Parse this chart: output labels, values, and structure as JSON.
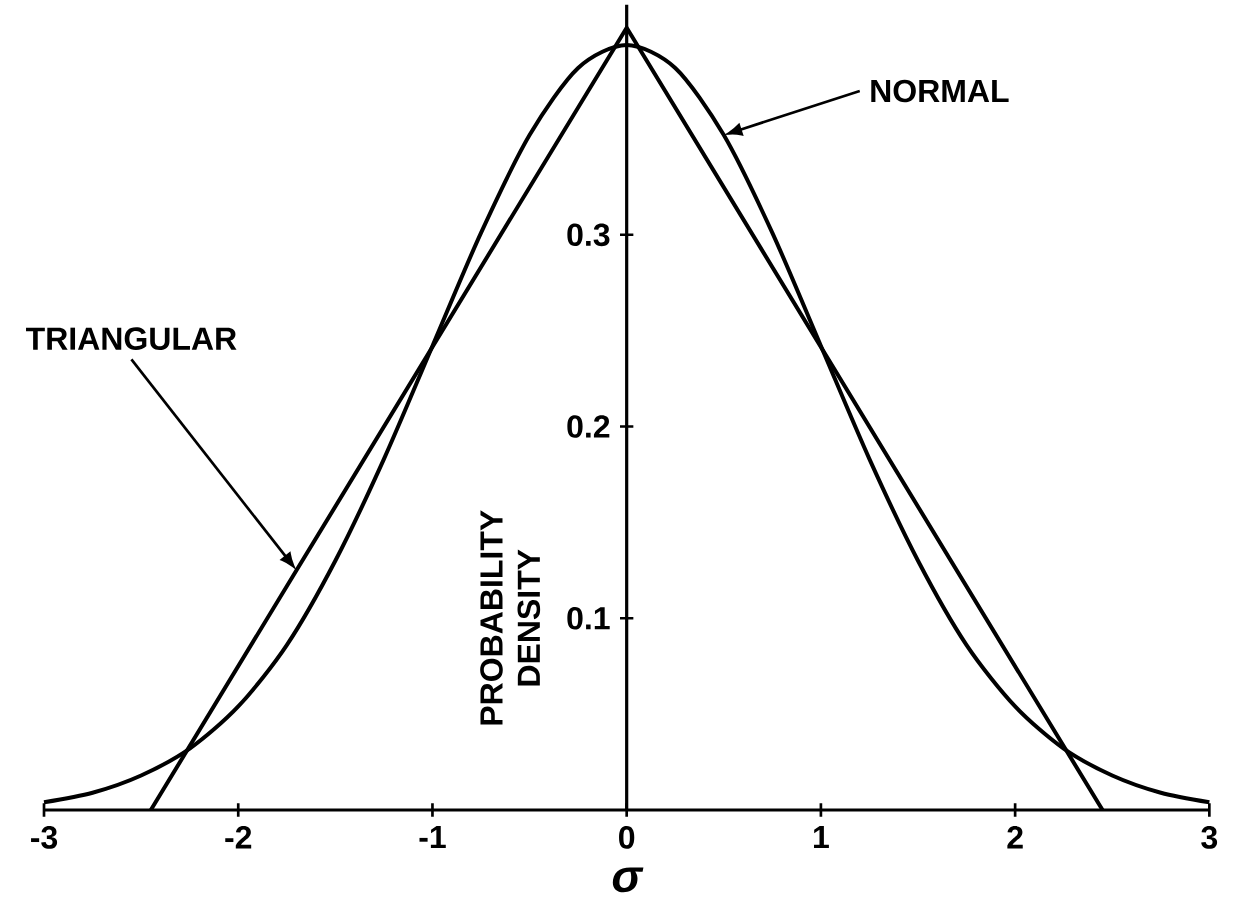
{
  "chart_data": {
    "type": "line",
    "xlabel": "σ",
    "ylabel": "PROBABILITY DENSITY",
    "xlim": [
      -3,
      3
    ],
    "ylim": [
      0,
      0.42
    ],
    "xticks": [
      -3,
      -2,
      -1,
      0,
      1,
      2,
      3
    ],
    "yticks": [
      0.1,
      0.2,
      0.3
    ],
    "series": [
      {
        "name": "TRIANGULAR",
        "color": "#000000",
        "x": [
          -2.45,
          -1.7,
          0,
          2.45
        ],
        "values": [
          0,
          0.125,
          0.408,
          0
        ]
      },
      {
        "name": "NORMAL",
        "color": "#000000",
        "x": [
          -3,
          -2.75,
          -2.5,
          -2.25,
          -2,
          -1.75,
          -1.5,
          -1.25,
          -1,
          -0.75,
          -0.5,
          -0.25,
          0,
          0.25,
          0.5,
          0.75,
          1,
          1.25,
          1.5,
          1.75,
          2,
          2.25,
          2.5,
          2.75,
          3
        ],
        "values": [
          0.004,
          0.009,
          0.018,
          0.032,
          0.054,
          0.086,
          0.13,
          0.183,
          0.242,
          0.301,
          0.352,
          0.387,
          0.399,
          0.387,
          0.352,
          0.301,
          0.242,
          0.183,
          0.13,
          0.086,
          0.054,
          0.032,
          0.018,
          0.009,
          0.004
        ]
      }
    ]
  }
}
